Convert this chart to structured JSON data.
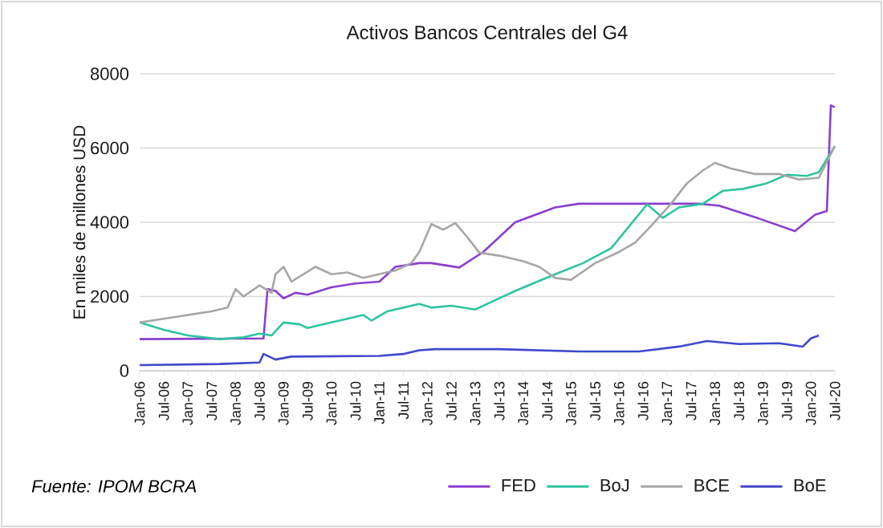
{
  "chart_data": {
    "type": "line",
    "title": "Activos Bancos Centrales del G4",
    "ylabel": "En miles de millones USD",
    "annotations": [
      "*Fuente: IPOM BCRA*"
    ],
    "xlim": [
      "2006-01",
      "2020-07"
    ],
    "ylim": [
      0,
      8000
    ],
    "yticks": [
      0,
      2000,
      4000,
      6000,
      8000
    ],
    "xticks": [
      {
        "value": "2006-01",
        "label": "Jan-06"
      },
      {
        "value": "2006-07",
        "label": "Jul-06"
      },
      {
        "value": "2007-01",
        "label": "Jan-07"
      },
      {
        "value": "2007-07",
        "label": "Jul-07"
      },
      {
        "value": "2008-01",
        "label": "Jan-08"
      },
      {
        "value": "2008-07",
        "label": "Jul-08"
      },
      {
        "value": "2009-01",
        "label": "Jan-09"
      },
      {
        "value": "2009-07",
        "label": "Jul-09"
      },
      {
        "value": "2010-01",
        "label": "Jan-10"
      },
      {
        "value": "2010-07",
        "label": "Jul-10"
      },
      {
        "value": "2011-01",
        "label": "Jan-11"
      },
      {
        "value": "2011-07",
        "label": "Jul-11"
      },
      {
        "value": "2012-01",
        "label": "Jan-12"
      },
      {
        "value": "2012-07",
        "label": "Jul-12"
      },
      {
        "value": "2013-01",
        "label": "Jan-13"
      },
      {
        "value": "2013-07",
        "label": "Jul-13"
      },
      {
        "value": "2014-01",
        "label": "Jan-14"
      },
      {
        "value": "2014-07",
        "label": "Jul-14"
      },
      {
        "value": "2015-01",
        "label": "Jan-15"
      },
      {
        "value": "2015-07",
        "label": "Jul-15"
      },
      {
        "value": "2016-01",
        "label": "Jan-16"
      },
      {
        "value": "2016-07",
        "label": "Jul-16"
      },
      {
        "value": "2017-01",
        "label": "Jan-17"
      },
      {
        "value": "2017-07",
        "label": "Jul-17"
      },
      {
        "value": "2018-01",
        "label": "Jan-18"
      },
      {
        "value": "2018-07",
        "label": "Jul-18"
      },
      {
        "value": "2019-01",
        "label": "Jan-19"
      },
      {
        "value": "2019-07",
        "label": "Jul-19"
      },
      {
        "value": "2020-01",
        "label": "Jan-20"
      },
      {
        "value": "2020-07",
        "label": "Jul-20"
      }
    ],
    "grid": "y",
    "legend": "bottom",
    "marker": "none",
    "line_style": "solid",
    "series": [
      {
        "name": "FED",
        "color": "#8a3fcf",
        "x": [
          "2006-01",
          "2008-08",
          "2008-09",
          "2008-11",
          "2009-01",
          "2009-04",
          "2009-07",
          "2010-01",
          "2010-07",
          "2011-01",
          "2011-05",
          "2011-11",
          "2012-02",
          "2012-09",
          "2013-03",
          "2013-11",
          "2014-09",
          "2015-03",
          "2017-09",
          "2018-02",
          "2018-12",
          "2019-09",
          "2020-02",
          "2020-05",
          "2020-06",
          "2020-07"
        ],
        "values": [
          850,
          870,
          2200,
          2150,
          1950,
          2100,
          2050,
          2250,
          2350,
          2400,
          2800,
          2900,
          2900,
          2780,
          3200,
          4000,
          4400,
          4500,
          4500,
          4450,
          4100,
          3760,
          4200,
          4300,
          7150,
          7100
        ]
      },
      {
        "name": "BoJ",
        "color": "#2ec4a0",
        "x": [
          "2006-01",
          "2006-07",
          "2007-01",
          "2007-09",
          "2008-03",
          "2008-07",
          "2008-10",
          "2009-01",
          "2009-05",
          "2009-07",
          "2010-01",
          "2010-05",
          "2010-09",
          "2010-11",
          "2011-03",
          "2011-07",
          "2011-11",
          "2012-02",
          "2012-07",
          "2013-01",
          "2013-11",
          "2014-09",
          "2015-04",
          "2015-11",
          "2016-08",
          "2016-12",
          "2017-04",
          "2017-10",
          "2018-03",
          "2018-08",
          "2019-02",
          "2019-07",
          "2019-12",
          "2020-03",
          "2020-07"
        ],
        "values": [
          1300,
          1100,
          950,
          850,
          900,
          1000,
          950,
          1300,
          1250,
          1150,
          1300,
          1400,
          1500,
          1350,
          1600,
          1700,
          1800,
          1700,
          1750,
          1650,
          2150,
          2600,
          2900,
          3300,
          4480,
          4120,
          4400,
          4500,
          4850,
          4900,
          5050,
          5280,
          5250,
          5350,
          6050
        ]
      },
      {
        "name": "BCE",
        "color": "#a6a6a6",
        "x": [
          "2006-01",
          "2006-07",
          "2007-01",
          "2007-07",
          "2007-11",
          "2008-01",
          "2008-03",
          "2008-07",
          "2008-10",
          "2008-11",
          "2009-01",
          "2009-03",
          "2009-06",
          "2009-09",
          "2010-01",
          "2010-05",
          "2010-09",
          "2011-01",
          "2011-05",
          "2011-09",
          "2011-11",
          "2012-02",
          "2012-05",
          "2012-08",
          "2012-11",
          "2013-02",
          "2013-07",
          "2014-01",
          "2014-05",
          "2014-09",
          "2015-01",
          "2015-03",
          "2015-07",
          "2016-01",
          "2016-05",
          "2016-09",
          "2017-02",
          "2017-06",
          "2017-10",
          "2018-01",
          "2018-05",
          "2018-11",
          "2019-05",
          "2019-10",
          "2020-03",
          "2020-07"
        ],
        "values": [
          1300,
          1400,
          1500,
          1600,
          1700,
          2200,
          2000,
          2300,
          2100,
          2600,
          2800,
          2400,
          2600,
          2800,
          2600,
          2650,
          2500,
          2600,
          2700,
          2900,
          3200,
          3950,
          3800,
          3980,
          3600,
          3180,
          3100,
          2950,
          2800,
          2500,
          2450,
          2600,
          2900,
          3200,
          3450,
          3900,
          4500,
          5050,
          5400,
          5600,
          5450,
          5300,
          5300,
          5150,
          5200,
          6050
        ]
      },
      {
        "name": "BoE",
        "color": "#3f48cc",
        "x": [
          "2006-01",
          "2007-09",
          "2008-07",
          "2008-08",
          "2008-11",
          "2009-03",
          "2011-01",
          "2011-07",
          "2011-11",
          "2012-03",
          "2013-07",
          "2015-03",
          "2016-06",
          "2017-04",
          "2017-11",
          "2018-07",
          "2019-05",
          "2019-11",
          "2020-01",
          "2020-03"
        ],
        "values": [
          150,
          180,
          220,
          450,
          300,
          380,
          400,
          450,
          550,
          580,
          580,
          520,
          520,
          650,
          800,
          720,
          740,
          650,
          870,
          950
        ]
      }
    ]
  }
}
